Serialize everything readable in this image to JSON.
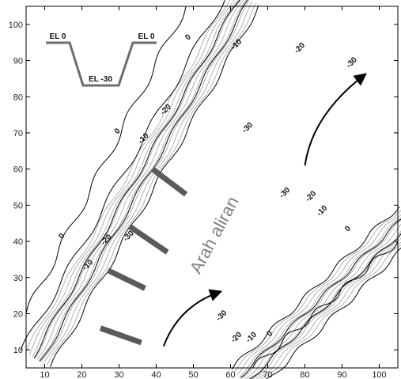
{
  "chart_data": {
    "type": "contour",
    "xlim": [
      5,
      105
    ],
    "ylim": [
      5,
      105
    ],
    "x_ticks": [
      10,
      20,
      30,
      40,
      50,
      60,
      70,
      80,
      90,
      100
    ],
    "y_ticks": [
      10,
      20,
      30,
      40,
      50,
      60,
      70,
      80,
      90,
      100
    ],
    "grid": false,
    "contour_levels": [
      0,
      -10,
      -20,
      -30
    ],
    "contour_labels": [
      {
        "text": "0",
        "x": 49,
        "y": 96
      },
      {
        "text": "-10",
        "x": 62,
        "y": 94
      },
      {
        "text": "-20",
        "x": 79,
        "y": 93
      },
      {
        "text": "-30",
        "x": 93,
        "y": 89
      },
      {
        "text": "0",
        "x": 30,
        "y": 70
      },
      {
        "text": "-10",
        "x": 37,
        "y": 68
      },
      {
        "text": "-20",
        "x": 43,
        "y": 76
      },
      {
        "text": "-30",
        "x": 65,
        "y": 71
      },
      {
        "text": "0",
        "x": 15,
        "y": 41
      },
      {
        "text": "-10",
        "x": 22,
        "y": 33
      },
      {
        "text": "-20",
        "x": 27,
        "y": 40
      },
      {
        "text": "-30",
        "x": 33,
        "y": 41
      },
      {
        "text": "-30",
        "x": 75,
        "y": 53
      },
      {
        "text": "-20",
        "x": 82,
        "y": 52
      },
      {
        "text": "-10",
        "x": 85,
        "y": 48
      },
      {
        "text": "0",
        "x": 92,
        "y": 43
      },
      {
        "text": "-30",
        "x": 58,
        "y": 19
      },
      {
        "text": "-20",
        "x": 62,
        "y": 13
      },
      {
        "text": "-10",
        "x": 66,
        "y": 13
      },
      {
        "text": "0",
        "x": 71,
        "y": 14
      }
    ],
    "annotation": "Arah aliran",
    "inset_section_labels": [
      "EL 0",
      "EL -30",
      "EL 0"
    ],
    "groynes": [
      {
        "x1": 39,
        "y1": 60,
        "x2": 48,
        "y2": 53
      },
      {
        "x1": 33,
        "y1": 44,
        "x2": 43,
        "y2": 37
      },
      {
        "x1": 27,
        "y1": 32,
        "x2": 37,
        "y2": 27
      },
      {
        "x1": 25,
        "y1": 16,
        "x2": 36,
        "y2": 12
      }
    ],
    "flow_arrows": [
      {
        "start": [
          42,
          11
        ],
        "control": [
          46,
          22
        ],
        "end": [
          57,
          26
        ]
      },
      {
        "start": [
          80,
          61
        ],
        "control": [
          82,
          75
        ],
        "end": [
          96,
          86
        ]
      }
    ],
    "colors": {
      "main_contour": "#000000",
      "minor_contour": "#a0a0a0",
      "groyne": "#5a5a5a",
      "annotation": "#7f7f7f"
    }
  }
}
